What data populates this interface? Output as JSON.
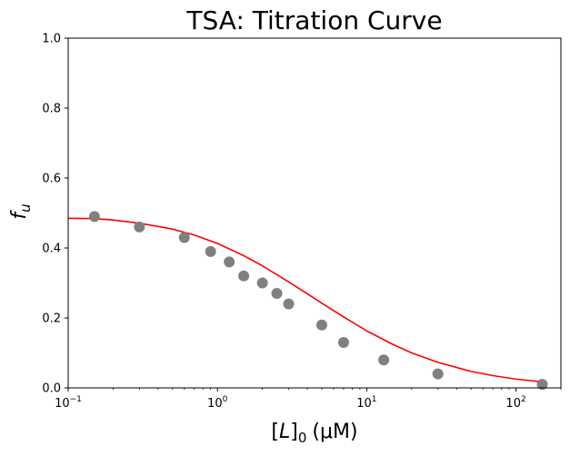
{
  "chart_data": {
    "type": "scatter",
    "title": "TSA: Titration Curve",
    "xlabel": "[L]0 (μM)",
    "xlabel_parts": {
      "base": "[L]",
      "subscript": "0",
      "unit": "(μM)"
    },
    "ylabel": "fu",
    "ylabel_parts": {
      "base": "f",
      "subscript": "u"
    },
    "xscale": "log",
    "xlim": [
      0.1,
      200
    ],
    "ylim": [
      0.0,
      1.0
    ],
    "x_ticks": [
      {
        "value": 0.1,
        "base": "10",
        "exp": "−1"
      },
      {
        "value": 1,
        "base": "10",
        "exp": "0"
      },
      {
        "value": 10,
        "base": "10",
        "exp": "1"
      },
      {
        "value": 100,
        "base": "10",
        "exp": "2"
      }
    ],
    "y_ticks": [
      "0.0",
      "0.2",
      "0.4",
      "0.6",
      "0.8",
      "1.0"
    ],
    "grid": false,
    "colors": {
      "points": "#808080",
      "fit_line": "#ff0000",
      "axes": "#000000",
      "background": "#ffffff"
    },
    "series": [
      {
        "kind": "scatter",
        "x": [
          0.15,
          0.3,
          0.6,
          0.9,
          1.2,
          1.5,
          2.0,
          2.5,
          3.0,
          5.0,
          7.0,
          13.0,
          30.0,
          150.0
        ],
        "y": [
          0.49,
          0.46,
          0.43,
          0.39,
          0.36,
          0.32,
          0.3,
          0.27,
          0.24,
          0.18,
          0.13,
          0.08,
          0.04,
          0.01
        ]
      },
      {
        "kind": "line",
        "x": [
          0.1,
          0.15,
          0.2,
          0.3,
          0.5,
          0.7,
          1.0,
          1.5,
          2.0,
          3.0,
          4.0,
          5.0,
          7.0,
          10.0,
          15.0,
          20.0,
          30.0,
          50.0,
          70.0,
          100.0,
          150.0
        ],
        "y": [
          0.485,
          0.484,
          0.48,
          0.471,
          0.454,
          0.437,
          0.413,
          0.378,
          0.349,
          0.303,
          0.269,
          0.242,
          0.203,
          0.163,
          0.124,
          0.1,
          0.073,
          0.047,
          0.035,
          0.025,
          0.017
        ]
      }
    ]
  }
}
